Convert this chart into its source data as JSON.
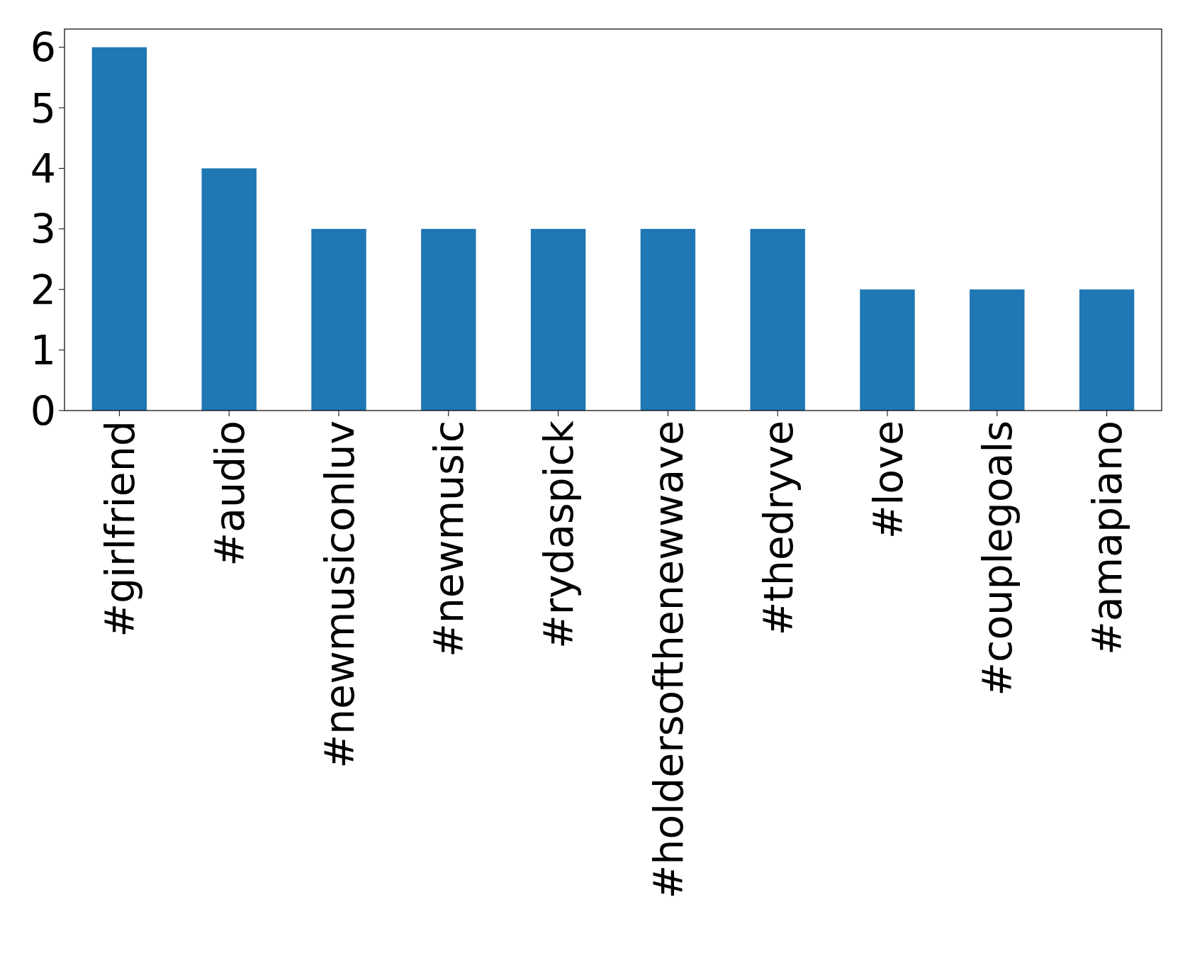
{
  "chart_data": {
    "type": "bar",
    "categories": [
      "#girlfriend",
      "#audio",
      "#newmusiconluv",
      "#newmusic",
      "#rydaspick",
      "#holdersofthenewwave",
      "#thedryve",
      "#love",
      "#couplegoals",
      "#amapiano"
    ],
    "values": [
      6,
      4,
      3,
      3,
      3,
      3,
      3,
      2,
      2,
      2
    ],
    "color": "#1f77b4",
    "ylim": [
      0,
      6.3
    ],
    "yticks": [
      0,
      1,
      2,
      3,
      4,
      5,
      6
    ],
    "grid": false
  }
}
